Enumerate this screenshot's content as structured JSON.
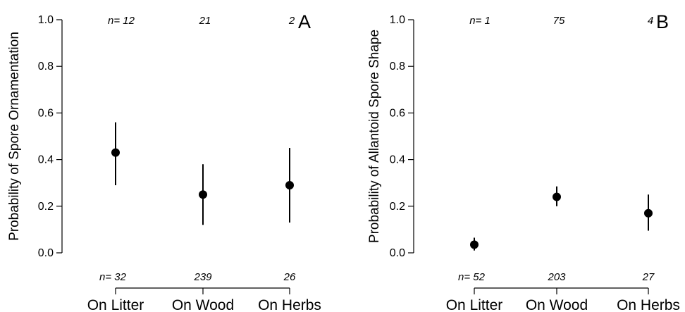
{
  "chart_data": [
    {
      "type": "scatter",
      "panel": "A",
      "ylabel": "Probability of Spore Ornamentation",
      "ylim": [
        0,
        1
      ],
      "yticks": [
        "0.0",
        "0.2",
        "0.4",
        "0.6",
        "0.8",
        "1.0"
      ],
      "categories": [
        "On Litter",
        "On Wood",
        "On Herbs"
      ],
      "values": [
        0.43,
        0.25,
        0.29
      ],
      "lower": [
        0.29,
        0.12,
        0.13
      ],
      "upper": [
        0.56,
        0.38,
        0.45
      ],
      "n_top": [
        "n= 12",
        "21",
        "2"
      ],
      "n_bottom": [
        "n= 32",
        "239",
        "26"
      ],
      "grid": false
    },
    {
      "type": "scatter",
      "panel": "B",
      "ylabel": "Probability of Allantoid Spore Shape",
      "ylim": [
        0,
        1
      ],
      "yticks": [
        "0.0",
        "0.2",
        "0.4",
        "0.6",
        "0.8",
        "1.0"
      ],
      "categories": [
        "On Litter",
        "On Wood",
        "On Herbs"
      ],
      "values": [
        0.035,
        0.24,
        0.17
      ],
      "lower": [
        0.01,
        0.2,
        0.095
      ],
      "upper": [
        0.065,
        0.285,
        0.25
      ],
      "n_top": [
        "n= 1",
        "75",
        "4"
      ],
      "n_bottom": [
        "n= 52",
        "203",
        "27"
      ],
      "grid": false
    }
  ]
}
